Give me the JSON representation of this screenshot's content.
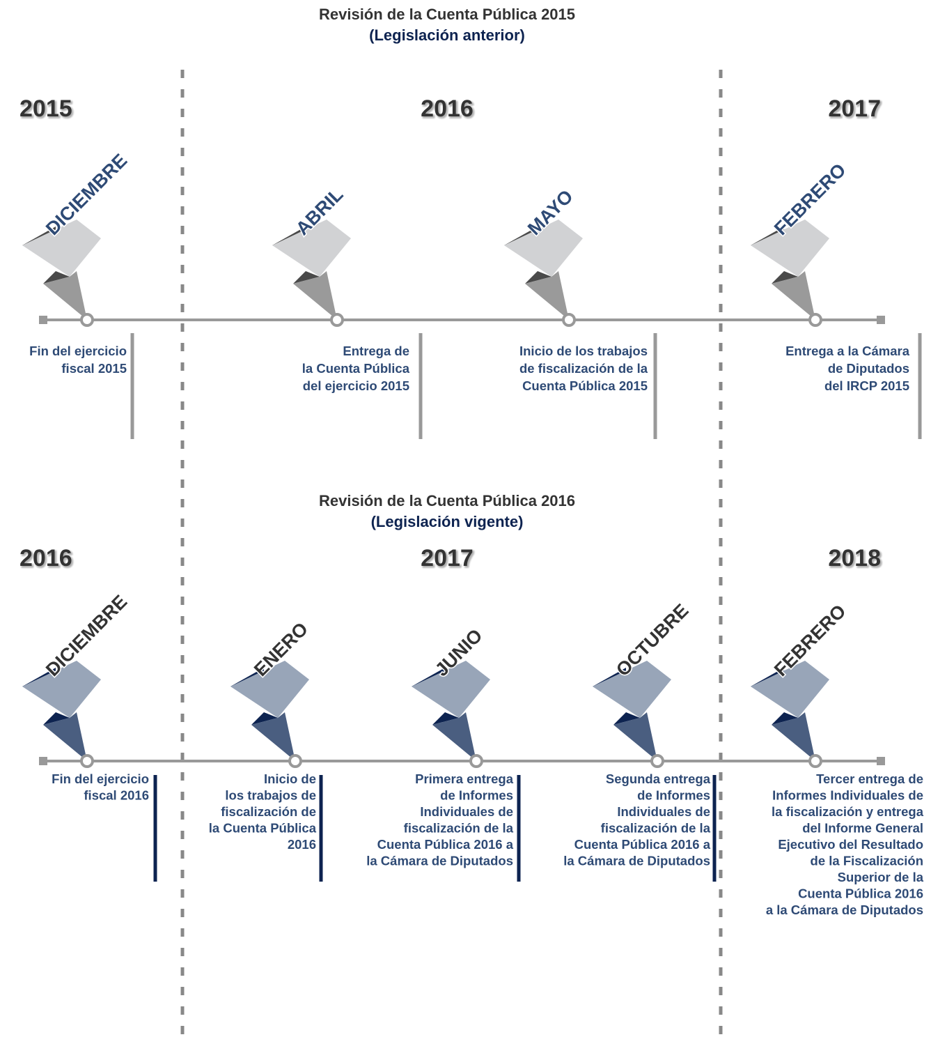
{
  "timelines": [
    {
      "title": "Revisión de la Cuenta Pública 2015",
      "subtitle": "(Legislación anterior)",
      "years": [
        "2015",
        "2016",
        "2017"
      ],
      "events": [
        {
          "month": "DICIEMBRE",
          "lines": [
            "Fin del ejercicio",
            "fiscal 2015"
          ]
        },
        {
          "month": "ABRIL",
          "lines": [
            "Entrega de",
            "la Cuenta Pública",
            "del ejercicio 2015"
          ]
        },
        {
          "month": "MAYO",
          "lines": [
            "Inicio de los trabajos",
            "de fiscalización de la",
            "Cuenta Pública 2015"
          ]
        },
        {
          "month": "FEBRERO",
          "lines": [
            "Entrega a la Cámara",
            "de Diputados",
            "del IRCP 2015"
          ]
        }
      ]
    },
    {
      "title": "Revisión de la Cuenta Pública 2016",
      "subtitle": "(Legislación vigente)",
      "years": [
        "2016",
        "2017",
        "2018"
      ],
      "events": [
        {
          "month": "DICIEMBRE",
          "lines": [
            "Fin del ejercicio",
            "fiscal 2016"
          ]
        },
        {
          "month": "ENERO",
          "lines": [
            "Inicio de",
            "los trabajos de",
            "fiscalización de",
            "la Cuenta Pública",
            "2016"
          ]
        },
        {
          "month": "JUNIO",
          "lines": [
            "Primera entrega",
            "de Informes",
            "Individuales de",
            "fiscalización de la",
            "Cuenta Pública 2016 a",
            "la Cámara de Diputados"
          ]
        },
        {
          "month": "OCTUBRE",
          "lines": [
            "Segunda entrega",
            "de Informes",
            "Individuales de",
            "fiscalización de la",
            "Cuenta Pública 2016 a",
            "la Cámara de Diputados"
          ]
        },
        {
          "month": "FEBRERO",
          "lines": [
            "Tercer entrega de",
            "Informes Individuales de",
            "la fiscalización y entrega",
            "del Informe General",
            "Ejecutivo del Resultado",
            "de la Fiscalización",
            "Superior de la",
            "Cuenta Pública 2016",
            "a la Cámara de Diputados"
          ]
        }
      ]
    }
  ]
}
